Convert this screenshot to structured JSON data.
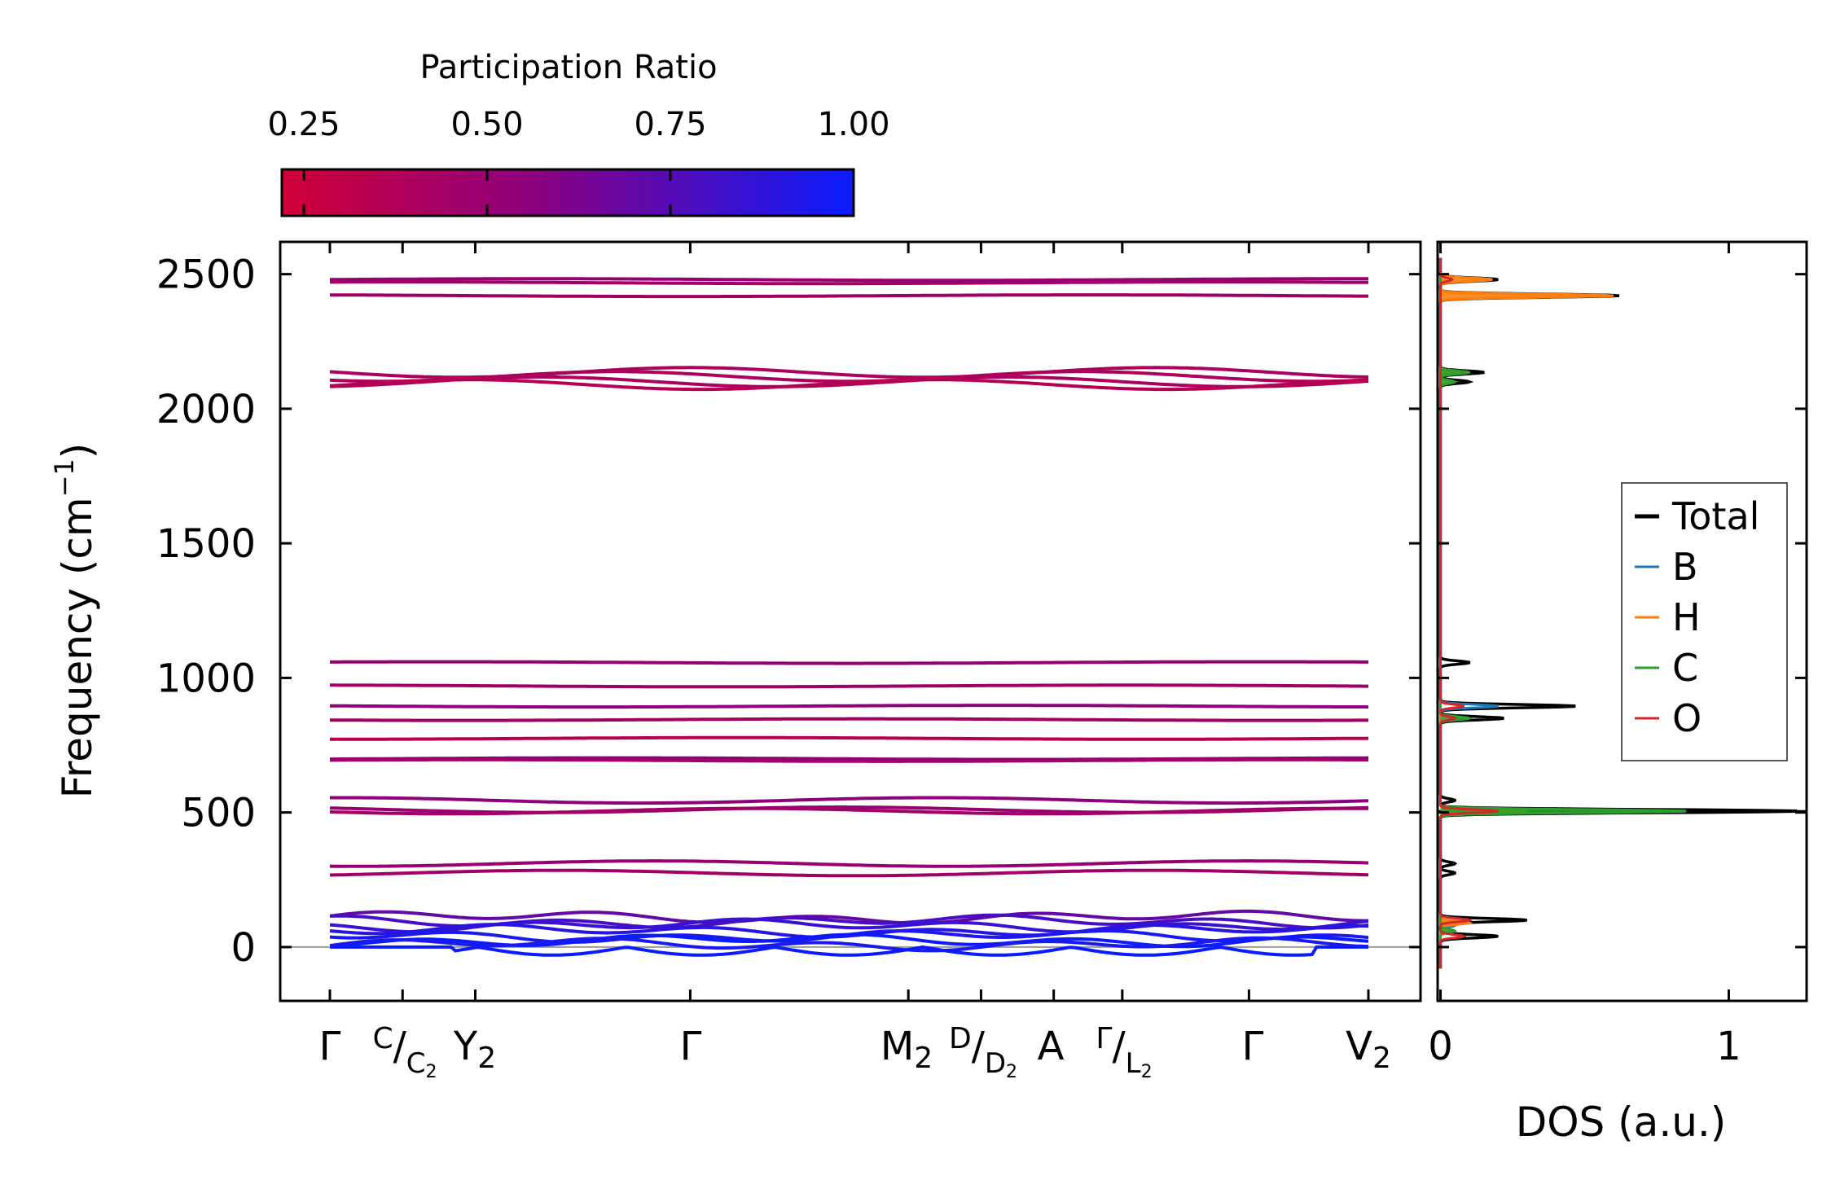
{
  "colorbar": {
    "label": "Participation Ratio",
    "min": 0.22,
    "max": 1.0,
    "ticks": [
      "0.25",
      "0.50",
      "0.75",
      "1.00"
    ],
    "tick_values": [
      0.25,
      0.5,
      0.75,
      1.0
    ],
    "colors": {
      "low": "#d10037",
      "mid": "#8a0080",
      "high": "#0a1cff"
    }
  },
  "chart_data": [
    {
      "type": "line",
      "name": "phonon-band-structure",
      "ylabel": "Frequency (cm⁻¹)",
      "ylim": [
        -200,
        2620
      ],
      "yticks": [
        "0",
        "500",
        "1000",
        "1500",
        "2000",
        "2500"
      ],
      "ytick_values": [
        0,
        500,
        1000,
        1500,
        2000,
        2500
      ],
      "x_path_ticks": [
        {
          "label": "Γ",
          "position": 0.0
        },
        {
          "label": "C|C₂",
          "position": 0.07
        },
        {
          "label": "Y₂",
          "position": 0.14
        },
        {
          "label": "Γ",
          "position": 0.347
        },
        {
          "label": "M₂",
          "position": 0.557
        },
        {
          "label": "D|D₂",
          "position": 0.627
        },
        {
          "label": "A",
          "position": 0.697
        },
        {
          "label": "Γ|L₂",
          "position": 0.763
        },
        {
          "label": "Γ",
          "position": 0.885
        },
        {
          "label": "V₂",
          "position": 1.0
        }
      ],
      "x_tick_labels": {
        "gamma": "Γ",
        "c_top": "C",
        "c_sub": "C",
        "c_sub_index": "2",
        "y": "Y",
        "y_index": "2",
        "m": "M",
        "m_index": "2",
        "d_top": "D",
        "d_sub": "D",
        "d_sub_index": "2",
        "a": "A",
        "gamma_top": "Γ",
        "l_sub": "L",
        "l_sub_index": "2",
        "v": "V",
        "v_index": "2",
        "slash": "/"
      },
      "ylabel_text": "Frequency (cm",
      "ylabel_sup": "−1",
      "ylabel_close": ")",
      "bands": [
        {
          "freq": 2480,
          "pr": 0.5
        },
        {
          "freq": 2468,
          "pr": 0.45
        },
        {
          "freq": 2420,
          "pr": 0.45
        },
        {
          "freq": 2135,
          "pr": 0.4
        },
        {
          "freq": 2120,
          "pr": 0.4
        },
        {
          "freq": 2100,
          "pr": 0.4
        },
        {
          "freq": 2090,
          "pr": 0.35
        },
        {
          "freq": 1057,
          "pr": 0.5
        },
        {
          "freq": 970,
          "pr": 0.45
        },
        {
          "freq": 895,
          "pr": 0.55
        },
        {
          "freq": 845,
          "pr": 0.45
        },
        {
          "freq": 775,
          "pr": 0.35
        },
        {
          "freq": 700,
          "pr": 0.55
        },
        {
          "freq": 693,
          "pr": 0.45
        },
        {
          "freq": 545,
          "pr": 0.55
        },
        {
          "freq": 510,
          "pr": 0.5
        },
        {
          "freq": 505,
          "pr": 0.45
        },
        {
          "freq": 310,
          "pr": 0.5
        },
        {
          "freq": 275,
          "pr": 0.45
        },
        {
          "freq": 110,
          "pr": 0.7
        },
        {
          "freq": 95,
          "pr": 0.8
        },
        {
          "freq": 80,
          "pr": 0.85
        },
        {
          "freq": 60,
          "pr": 0.9
        },
        {
          "freq": 40,
          "pr": 0.95
        },
        {
          "freq": 25,
          "pr": 1.0
        },
        {
          "freq": 10,
          "pr": 0.95
        },
        {
          "freq": 0,
          "pr": 1.0
        }
      ]
    },
    {
      "type": "line",
      "name": "density-of-states",
      "xlabel": "DOS (a.u.)",
      "xlim": [
        -0.01,
        1.27
      ],
      "xticks": [
        "0",
        "1"
      ],
      "xtick_values": [
        0,
        1
      ],
      "ylim": [
        -200,
        2620
      ],
      "legend": {
        "placement": "center-right",
        "entries": [
          "Total",
          "B",
          "H",
          "C",
          "O"
        ]
      },
      "series": [
        {
          "name": "Total",
          "color": "#000000",
          "peaks": [
            {
              "freq": 2480,
              "height": 0.2
            },
            {
              "freq": 2420,
              "height": 0.62
            },
            {
              "freq": 2135,
              "height": 0.15
            },
            {
              "freq": 2100,
              "height": 0.1
            },
            {
              "freq": 1057,
              "height": 0.1
            },
            {
              "freq": 895,
              "height": 0.47
            },
            {
              "freq": 850,
              "height": 0.22
            },
            {
              "freq": 545,
              "height": 0.05
            },
            {
              "freq": 505,
              "height": 1.25
            },
            {
              "freq": 310,
              "height": 0.05
            },
            {
              "freq": 275,
              "height": 0.05
            },
            {
              "freq": 100,
              "height": 0.3
            },
            {
              "freq": 40,
              "height": 0.2
            }
          ]
        },
        {
          "name": "B",
          "color": "#1f77b4",
          "peaks": [
            {
              "freq": 895,
              "height": 0.2
            },
            {
              "freq": 505,
              "height": 0.3
            },
            {
              "freq": 80,
              "height": 0.05
            }
          ]
        },
        {
          "name": "H",
          "color": "#ff7f0e",
          "peaks": [
            {
              "freq": 2480,
              "height": 0.18
            },
            {
              "freq": 2420,
              "height": 0.6
            },
            {
              "freq": 2135,
              "height": 0.05
            },
            {
              "freq": 505,
              "height": 0.3
            },
            {
              "freq": 90,
              "height": 0.1
            }
          ]
        },
        {
          "name": "C",
          "color": "#2ca02c",
          "peaks": [
            {
              "freq": 2135,
              "height": 0.1
            },
            {
              "freq": 2100,
              "height": 0.05
            },
            {
              "freq": 850,
              "height": 0.1
            },
            {
              "freq": 505,
              "height": 0.86
            },
            {
              "freq": 60,
              "height": 0.05
            }
          ]
        },
        {
          "name": "O",
          "color": "#d62728",
          "peaks": [
            {
              "freq": 2480,
              "height": 0.04
            },
            {
              "freq": 895,
              "height": 0.08
            },
            {
              "freq": 850,
              "height": 0.05
            },
            {
              "freq": 505,
              "height": 0.2
            },
            {
              "freq": 100,
              "height": 0.1
            },
            {
              "freq": 40,
              "height": 0.08
            }
          ]
        }
      ]
    }
  ]
}
